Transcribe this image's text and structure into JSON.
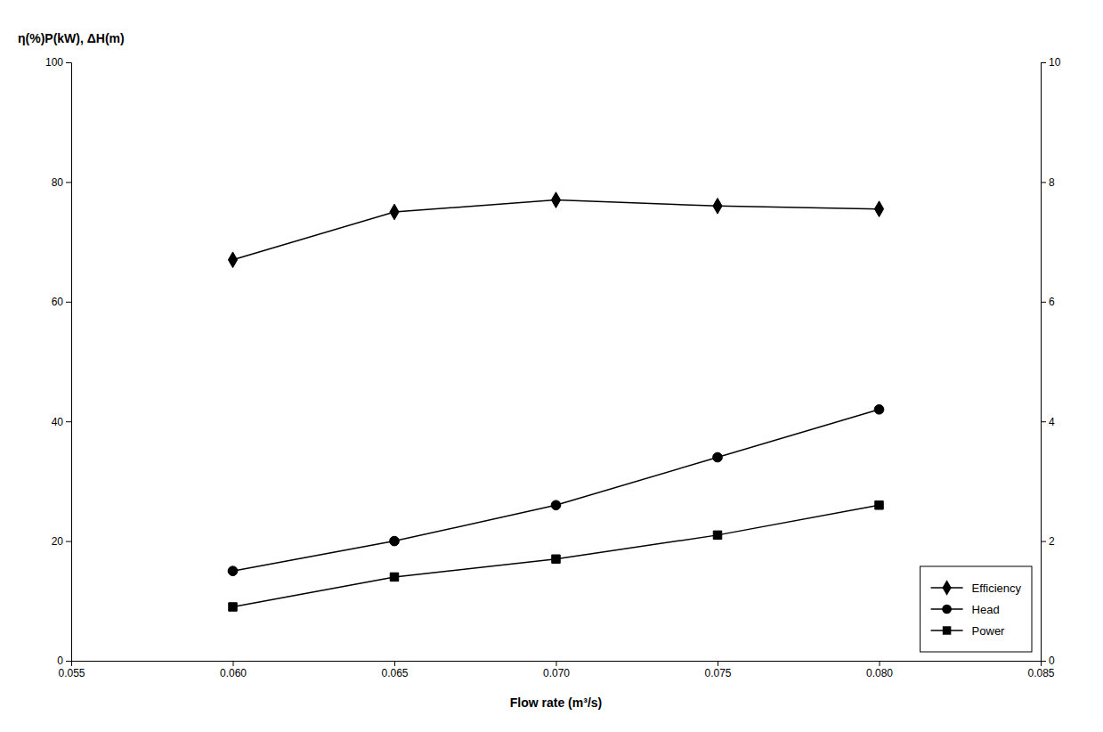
{
  "chart_data": {
    "type": "line",
    "x_label": "Flow rate (m³/s)",
    "y_label": "η(%)P(kW), ΔH(m)",
    "x": [
      0.06,
      0.065,
      0.07,
      0.075,
      0.08
    ],
    "series": [
      {
        "name": "Efficiency",
        "color": "#000000",
        "marker": "diamond",
        "values": [
          67,
          75,
          77,
          76,
          75.5
        ]
      },
      {
        "name": "Head",
        "color": "#000000",
        "marker": "circle",
        "values": [
          15,
          20,
          26,
          34,
          42
        ]
      },
      {
        "name": "Power",
        "color": "#000000",
        "marker": "square",
        "values": [
          9,
          14,
          17,
          21,
          26
        ]
      }
    ],
    "xlim": [
      0.055,
      0.085
    ],
    "ylim": [
      0,
      100
    ],
    "y2lim": [
      0,
      10
    ],
    "xticks": [
      0.055,
      {
        "value": 0.06,
        "label": "0.060"
      },
      0.065,
      {
        "value": 0.07,
        "label": "0.070"
      },
      0.075,
      {
        "value": 0.08,
        "label": "0.080"
      },
      0.085
    ],
    "yticks": [
      0,
      20,
      40,
      60,
      80,
      100
    ],
    "y2ticks": [
      0,
      2,
      4,
      6,
      8,
      10
    ],
    "grid": false,
    "legend": "lower right"
  }
}
